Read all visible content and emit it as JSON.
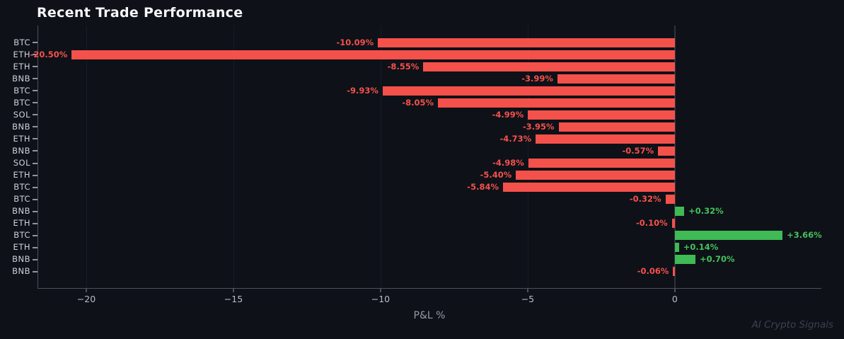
{
  "title": "Recent Trade Performance",
  "watermark": "AI Crypto Signals",
  "colors": {
    "background": "#0e1118",
    "negative": "#f5514b",
    "positive": "#3fba54",
    "title_text": "#f4f6f8",
    "tick_text": "#ccd1da",
    "axis_spine": "#4b515c",
    "gridline": "#171b26",
    "zero_line": "#2d323d",
    "watermark_text": "#3a4150"
  },
  "chart_data": {
    "type": "bar",
    "orientation": "horizontal",
    "title": "Recent Trade Performance",
    "xlabel": "P&L %",
    "ylabel": "",
    "grid": "vertical, faint",
    "legend": "none",
    "xlim": [
      -21.66,
      4.98
    ],
    "xticks": [
      -20,
      -15,
      -10,
      -5,
      0
    ],
    "xtick_labels": [
      "−20",
      "−15",
      "−10",
      "−5",
      "0"
    ],
    "categories": [
      "BTC",
      "ETH",
      "ETH",
      "BNB",
      "BTC",
      "BTC",
      "SOL",
      "BNB",
      "ETH",
      "BNB",
      "SOL",
      "ETH",
      "BTC",
      "BTC",
      "BNB",
      "ETH",
      "BTC",
      "ETH",
      "BNB",
      "BNB"
    ],
    "values": [
      -10.09,
      -20.5,
      -8.55,
      -3.99,
      -9.93,
      -8.05,
      -4.99,
      -3.95,
      -4.73,
      -0.57,
      -4.98,
      -5.4,
      -5.84,
      -0.32,
      0.32,
      -0.1,
      3.66,
      0.14,
      0.7,
      -0.06
    ],
    "bar_labels": [
      "-10.09%",
      "-20.50%",
      "-8.55%",
      "-3.99%",
      "-9.93%",
      "-8.05%",
      "-4.99%",
      "-3.95%",
      "-4.73%",
      "-0.57%",
      "-4.98%",
      "-5.40%",
      "-5.84%",
      "-0.32%",
      "+0.32%",
      "-0.10%",
      "+3.66%",
      "+0.14%",
      "+0.70%",
      "-0.06%"
    ]
  }
}
